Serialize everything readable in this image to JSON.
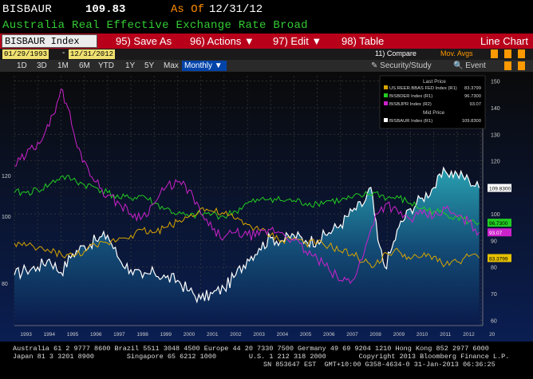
{
  "header": {
    "ticker": "BISBAUR",
    "price": "109.83",
    "as_of_label": "As Of",
    "as_of_date": "12/31/12",
    "subtitle": "Australia Real Effective Exchange Rate Broad"
  },
  "menubar": {
    "index_field": "BISBAUR Index",
    "save_as": "95) Save As",
    "actions": "96) Actions ▼",
    "edit": "97) Edit ▼",
    "table": "98) Table",
    "chart_type": "Line Chart"
  },
  "datebar": {
    "start_date": "01/29/1993",
    "separator": "-",
    "end_date": "12/31/2012",
    "compare": "11) Compare",
    "mov_avgs": "Mov. Avgs"
  },
  "rangebar": {
    "ranges": [
      "1D",
      "3D",
      "1M",
      "6M",
      "YTD",
      "1Y",
      "5Y",
      "Max"
    ],
    "frequency": "Monthly ▼",
    "security_study": "✎ Security/Study",
    "event": "🔍 Event"
  },
  "colors": {
    "usd": "#d9a400",
    "dem": "#22cc22",
    "jpy": "#cc22cc",
    "aud": "#ffffff",
    "aud_fill_top": "#2aa8b8",
    "aud_fill_bottom": "#0a1a4a",
    "background_top": "#0a0a0a",
    "background_bottom": "#0a1e52"
  },
  "chart_data": {
    "type": "line",
    "title": "",
    "x_ticks": [
      "1993",
      "1994",
      "1995",
      "1996",
      "1997",
      "1998",
      "1999",
      "2000",
      "2001",
      "2002",
      "2003",
      "2004",
      "2005",
      "2006",
      "2007",
      "2008",
      "2009",
      "2010",
      "2011",
      "2012",
      "20"
    ],
    "y_right_ticks": [
      "150",
      "140",
      "130",
      "120",
      "110",
      "100",
      "90",
      "80",
      "70",
      "60"
    ],
    "y_left_ticks": [
      "120",
      "100",
      "80"
    ],
    "legend": {
      "last_price_label": "Last Price",
      "mid_price_label": "Mid Price",
      "entries": [
        {
          "key": "usd",
          "name": "US.REER.BBAS FED Index (R1)",
          "value": "83.3799"
        },
        {
          "key": "dem",
          "name": "BISBDER Index (R1)",
          "value": "96.7300"
        },
        {
          "key": "jpy",
          "name": "BISBJPR Index (R2)",
          "value": "93.07"
        },
        {
          "key": "aud",
          "name": "BISBAUR Index (R1)",
          "value": "109.8300"
        }
      ]
    },
    "value_tags": [
      {
        "key": "aud",
        "label": "109.8300"
      },
      {
        "key": "dem",
        "label": "96.7300"
      },
      {
        "key": "usd",
        "label": "83.3799"
      },
      {
        "key": "jpy",
        "label": "93.07"
      }
    ],
    "series": [
      {
        "key": "aud",
        "name": "BISBAUR Index",
        "axis": "R1",
        "x": [
          1993.0,
          1993.5,
          1994.0,
          1994.5,
          1995.0,
          1995.5,
          1996.0,
          1996.5,
          1997.0,
          1997.5,
          1998.0,
          1998.5,
          1999.0,
          1999.5,
          2000.0,
          2000.5,
          2001.0,
          2001.5,
          2002.0,
          2002.5,
          2003.0,
          2003.5,
          2004.0,
          2004.5,
          2005.0,
          2005.5,
          2006.0,
          2006.5,
          2007.0,
          2007.5,
          2008.0,
          2008.3,
          2008.6,
          2008.9,
          2009.2,
          2009.5,
          2010.0,
          2010.5,
          2011.0,
          2011.5,
          2012.0,
          2012.5,
          2012.95
        ],
        "y": [
          77,
          79,
          80,
          83,
          78,
          85,
          88,
          90,
          92,
          83,
          79,
          76,
          78,
          76,
          75,
          71,
          68,
          70,
          72,
          77,
          83,
          87,
          91,
          90,
          92,
          90,
          90,
          93,
          96,
          101,
          104,
          110,
          90,
          80,
          87,
          95,
          102,
          106,
          110,
          116,
          115,
          113,
          109.8
        ]
      },
      {
        "key": "dem",
        "name": "BISBDER Index",
        "axis": "R1",
        "x": [
          1993.0,
          1993.5,
          1994.0,
          1994.5,
          1995.0,
          1995.5,
          1996.0,
          1996.5,
          1997.0,
          1997.5,
          1998.0,
          1998.5,
          1999.0,
          1999.5,
          2000.0,
          2000.5,
          2001.0,
          2001.5,
          2002.0,
          2002.5,
          2003.0,
          2003.5,
          2004.0,
          2004.5,
          2005.0,
          2005.5,
          2006.0,
          2006.5,
          2007.0,
          2007.5,
          2008.0,
          2008.5,
          2009.0,
          2009.5,
          2010.0,
          2010.5,
          2011.0,
          2011.5,
          2012.0,
          2012.5,
          2012.95
        ],
        "y": [
          108,
          108,
          109,
          111,
          114,
          113,
          111,
          110,
          108,
          106,
          106,
          107,
          104,
          102,
          100,
          99,
          100,
          100,
          99,
          101,
          104,
          105,
          106,
          105,
          105,
          104,
          104,
          105,
          105,
          106,
          107,
          108,
          106,
          106,
          104,
          102,
          101,
          100,
          99,
          97,
          96.7
        ]
      },
      {
        "key": "usd",
        "name": "US.REER.BBAS FED Index",
        "axis": "R1",
        "x": [
          1993.0,
          1993.5,
          1994.0,
          1994.5,
          1995.0,
          1995.5,
          1996.0,
          1996.5,
          1997.0,
          1997.5,
          1998.0,
          1998.5,
          1999.0,
          1999.5,
          2000.0,
          2000.5,
          2001.0,
          2001.5,
          2002.0,
          2002.5,
          2003.0,
          2003.5,
          2004.0,
          2004.5,
          2005.0,
          2005.5,
          2006.0,
          2006.5,
          2007.0,
          2007.5,
          2008.0,
          2008.5,
          2009.0,
          2009.5,
          2010.0,
          2010.5,
          2011.0,
          2011.5,
          2012.0,
          2012.5,
          2012.95
        ],
        "y": [
          89,
          88,
          87,
          86,
          85,
          84,
          86,
          88,
          89,
          91,
          92,
          94,
          93,
          95,
          97,
          99,
          102,
          101,
          100,
          98,
          96,
          94,
          92,
          90,
          91,
          89,
          89,
          88,
          86,
          85,
          82,
          81,
          85,
          86,
          83,
          84,
          84,
          81,
          82,
          84,
          83.4
        ]
      },
      {
        "key": "jpy",
        "name": "BISBJPR Index",
        "axis": "R2",
        "x": [
          1993.0,
          1993.5,
          1994.0,
          1994.5,
          1995.0,
          1995.3,
          1995.7,
          1996.0,
          1996.5,
          1997.0,
          1997.5,
          1998.0,
          1998.5,
          1999.0,
          1999.5,
          2000.0,
          2000.5,
          2001.0,
          2001.5,
          2002.0,
          2002.5,
          2003.0,
          2003.5,
          2004.0,
          2004.5,
          2005.0,
          2005.5,
          2006.0,
          2006.5,
          2007.0,
          2007.5,
          2008.0,
          2008.5,
          2009.0,
          2009.5,
          2010.0,
          2010.5,
          2011.0,
          2011.5,
          2012.0,
          2012.5,
          2012.95
        ],
        "y": [
          118,
          122,
          127,
          133,
          147,
          140,
          125,
          120,
          112,
          107,
          104,
          100,
          99,
          104,
          110,
          112,
          109,
          100,
          94,
          91,
          93,
          92,
          92,
          94,
          93,
          90,
          86,
          83,
          79,
          75,
          75,
          85,
          100,
          104,
          100,
          98,
          100,
          99,
          102,
          99,
          97,
          93.07
        ]
      }
    ]
  },
  "footer": {
    "line1": "Australia 61 2 9777 8600 Brazil 5511 3048 4500 Europe 44 20 7330 7500 Germany 49 69 9204 1210 Hong Kong 852 2977 6000",
    "line2": "Japan 81 3 3201 8900        Singapore 65 6212 1000        U.S. 1 212 318 2000        Copyright 2013 Bloomberg Finance L.P.",
    "line3": "SN 853647 EST  GMT+10:00 G358-4634-0 31-Jan-2013 06:36:25"
  }
}
